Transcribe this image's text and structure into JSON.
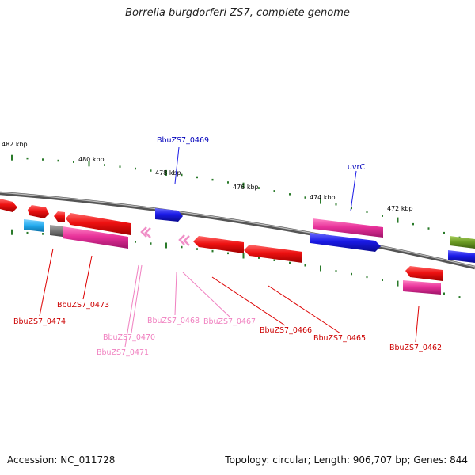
{
  "title": "Borrelia burgdorferi ZS7, complete genome",
  "accession": "Accession: NC_011728",
  "summary": "Topology: circular; Length: 906,707 bp; Genes: 844",
  "colors": {
    "red": "#ee1111",
    "pink": "#e8329a",
    "lightpink": "#f090c8",
    "blue": "#1a1ae6",
    "cyan": "#22aaee",
    "olive": "#6a9a22",
    "gray": "#777777",
    "tick": "#2a7a2a"
  },
  "kbp_labels": [
    "482 kbp",
    "480 kbp",
    "478 kbp",
    "476 kbp",
    "474 kbp",
    "472 kbp"
  ],
  "gene_labels": [
    {
      "text": "BbuZS7_0469",
      "color": "#0000bb"
    },
    {
      "text": "uvrC",
      "color": "#0000bb"
    },
    {
      "text": "BbuZS7_0473",
      "color": "#cc0000"
    },
    {
      "text": "BbuZS7_0474",
      "color": "#cc0000"
    },
    {
      "text": "BbuZS7_0470",
      "color": "#f080c0"
    },
    {
      "text": "BbuZS7_0471",
      "color": "#f080c0"
    },
    {
      "text": "BbuZS7_0468",
      "color": "#f080c0"
    },
    {
      "text": "BbuZS7_0467",
      "color": "#f080c0"
    },
    {
      "text": "BbuZS7_0466",
      "color": "#cc0000"
    },
    {
      "text": "BbuZS7_0465",
      "color": "#cc0000"
    },
    {
      "text": "BbuZS7_0462",
      "color": "#cc0000"
    }
  ]
}
